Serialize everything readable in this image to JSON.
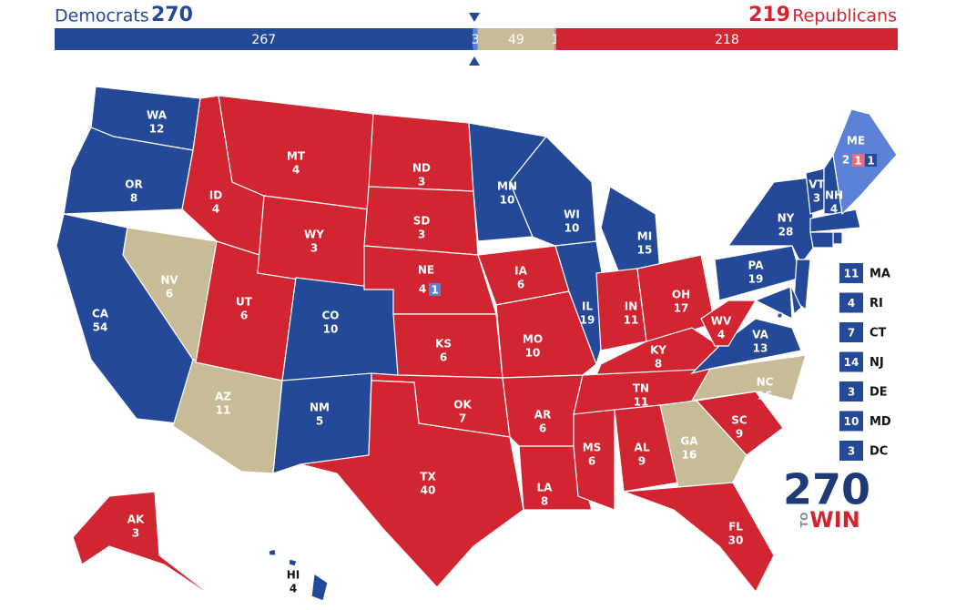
{
  "header": {
    "dem_label": "Democrats",
    "dem_total": 270,
    "rep_total": 219,
    "rep_label": "Republicans",
    "dem_color": "#244999",
    "rep_color": "#d22532"
  },
  "bar": {
    "segments": [
      {
        "value": 267,
        "color": "#244999"
      },
      {
        "value": 3,
        "color": "#5b82d6"
      },
      {
        "value": 49,
        "color": "#c8bc98"
      },
      {
        "value": 1,
        "color": "#e5707c"
      },
      {
        "value": 218,
        "color": "#d22532"
      }
    ]
  },
  "states": [
    {
      "abbr": "WA",
      "votes": 12,
      "color": "#244999"
    },
    {
      "abbr": "OR",
      "votes": 8,
      "color": "#244999"
    },
    {
      "abbr": "CA",
      "votes": 54,
      "color": "#244999"
    },
    {
      "abbr": "NV",
      "votes": 6,
      "color": "#c8bc98"
    },
    {
      "abbr": "AZ",
      "votes": 11,
      "color": "#c8bc98"
    },
    {
      "abbr": "UT",
      "votes": 6,
      "color": "#d22532"
    },
    {
      "abbr": "ID",
      "votes": 4,
      "color": "#d22532"
    },
    {
      "abbr": "MT",
      "votes": 4,
      "color": "#d22532"
    },
    {
      "abbr": "WY",
      "votes": 3,
      "color": "#d22532"
    },
    {
      "abbr": "CO",
      "votes": 10,
      "color": "#244999"
    },
    {
      "abbr": "NM",
      "votes": 5,
      "color": "#244999"
    },
    {
      "abbr": "ND",
      "votes": 3,
      "color": "#d22532"
    },
    {
      "abbr": "SD",
      "votes": 3,
      "color": "#d22532"
    },
    {
      "abbr": "NE",
      "votes": 4,
      "color": "#d22532",
      "districts": [
        {
          "votes": 1,
          "color": "#5b82d6"
        }
      ]
    },
    {
      "abbr": "KS",
      "votes": 6,
      "color": "#d22532"
    },
    {
      "abbr": "OK",
      "votes": 7,
      "color": "#d22532"
    },
    {
      "abbr": "TX",
      "votes": 40,
      "color": "#d22532"
    },
    {
      "abbr": "MN",
      "votes": 10,
      "color": "#244999"
    },
    {
      "abbr": "IA",
      "votes": 6,
      "color": "#d22532"
    },
    {
      "abbr": "MO",
      "votes": 10,
      "color": "#d22532"
    },
    {
      "abbr": "AR",
      "votes": 6,
      "color": "#d22532"
    },
    {
      "abbr": "LA",
      "votes": 8,
      "color": "#d22532"
    },
    {
      "abbr": "WI",
      "votes": 10,
      "color": "#244999"
    },
    {
      "abbr": "IL",
      "votes": 19,
      "color": "#244999"
    },
    {
      "abbr": "MI",
      "votes": 15,
      "color": "#244999"
    },
    {
      "abbr": "IN",
      "votes": 11,
      "color": "#d22532"
    },
    {
      "abbr": "OH",
      "votes": 17,
      "color": "#d22532"
    },
    {
      "abbr": "KY",
      "votes": 8,
      "color": "#d22532"
    },
    {
      "abbr": "TN",
      "votes": 11,
      "color": "#d22532"
    },
    {
      "abbr": "MS",
      "votes": 6,
      "color": "#d22532"
    },
    {
      "abbr": "AL",
      "votes": 9,
      "color": "#d22532"
    },
    {
      "abbr": "GA",
      "votes": 16,
      "color": "#c8bc98"
    },
    {
      "abbr": "FL",
      "votes": 30,
      "color": "#d22532"
    },
    {
      "abbr": "SC",
      "votes": 9,
      "color": "#d22532"
    },
    {
      "abbr": "NC",
      "votes": 16,
      "color": "#c8bc98"
    },
    {
      "abbr": "VA",
      "votes": 13,
      "color": "#244999"
    },
    {
      "abbr": "WV",
      "votes": 4,
      "color": "#d22532"
    },
    {
      "abbr": "PA",
      "votes": 19,
      "color": "#244999"
    },
    {
      "abbr": "NY",
      "votes": 28,
      "color": "#244999"
    },
    {
      "abbr": "VT",
      "votes": 3,
      "color": "#244999"
    },
    {
      "abbr": "NH",
      "votes": 4,
      "color": "#244999"
    },
    {
      "abbr": "MA",
      "votes": 11,
      "color": "#244999"
    },
    {
      "abbr": "RI",
      "votes": 4,
      "color": "#244999"
    },
    {
      "abbr": "CT",
      "votes": 7,
      "color": "#244999"
    },
    {
      "abbr": "NJ",
      "votes": 14,
      "color": "#244999"
    },
    {
      "abbr": "DE",
      "votes": 3,
      "color": "#244999"
    },
    {
      "abbr": "MD",
      "votes": 10,
      "color": "#244999"
    },
    {
      "abbr": "DC",
      "votes": 3,
      "color": "#244999"
    },
    {
      "abbr": "ME",
      "votes": 2,
      "color": "#5b82d6",
      "districts": [
        {
          "votes": 1,
          "color": "#e5707c"
        },
        {
          "votes": 1,
          "color": "#244999"
        }
      ]
    },
    {
      "abbr": "AK",
      "votes": 3,
      "color": "#d22532"
    },
    {
      "abbr": "HI",
      "votes": 4,
      "color": "#244999"
    }
  ],
  "logo": {
    "number": "270",
    "to": "TO",
    "win": "WIN"
  }
}
